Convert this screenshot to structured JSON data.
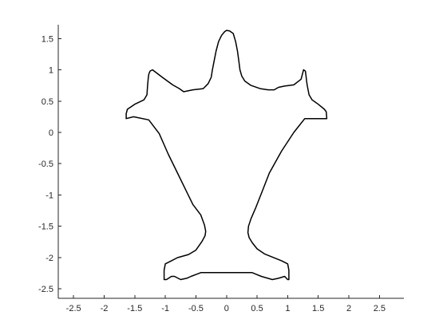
{
  "chart_data": {
    "type": "line",
    "title": "",
    "xlabel": "",
    "ylabel": "",
    "xlim": [
      -2.75,
      2.9
    ],
    "ylim": [
      -2.65,
      1.72
    ],
    "grid": false,
    "line_color": "#000000",
    "axis_color": "#262626",
    "x_ticks": [
      -2.5,
      -2,
      -1.5,
      -1,
      -0.5,
      0,
      0.5,
      1,
      1.5,
      2,
      2.5
    ],
    "x_tick_labels": [
      "-2.5",
      "-2",
      "-1.5",
      "-1",
      "-0.5",
      "0",
      "0.5",
      "1",
      "1.5",
      "2",
      "2.5"
    ],
    "y_ticks": [
      1.5,
      1,
      0.5,
      0,
      -0.5,
      -1,
      -1.5,
      -2,
      -2.5
    ],
    "y_tick_labels": [
      "1.5",
      "1",
      "0.5",
      "0",
      "-0.5",
      "-1",
      "-1.5",
      "-2",
      "-2.5"
    ],
    "series": [
      {
        "x": [
          0,
          0.05,
          0.11,
          0.15,
          0.18,
          0.2,
          0.22,
          0.25,
          0.3,
          0.4,
          0.55,
          0.68,
          0.78,
          0.85,
          0.95,
          1.1,
          1.22,
          1.26,
          1.29,
          1.3,
          1.31,
          1.32,
          1.35,
          1.4,
          1.5,
          1.6,
          1.63,
          1.64,
          1.5,
          1.28,
          1.1,
          0.9,
          0.7,
          0.58,
          0.48,
          0.4,
          0.36,
          0.35,
          0.37,
          0.42,
          0.5,
          0.62,
          0.9,
          1.0,
          1.02,
          1.02,
          1.0,
          0.95,
          0.85,
          0.75,
          0.57,
          0.47,
          0.42,
          0.34,
          0.1,
          0,
          -0.1,
          -0.34,
          -0.42,
          -0.5,
          -0.58,
          -0.65,
          -0.75,
          -0.85,
          -0.9,
          -0.98,
          -1.02,
          -1.02,
          -1.0,
          -0.9,
          -0.8,
          -0.62,
          -0.5,
          -0.45,
          -0.4,
          -0.35,
          -0.34,
          -0.36,
          -0.42,
          -0.55,
          -0.65,
          -0.8,
          -0.95,
          -1.1,
          -1.27,
          -1.52,
          -1.64,
          -1.64,
          -1.62,
          -1.5,
          -1.35,
          -1.3,
          -1.29,
          -1.28,
          -1.27,
          -1.25,
          -1.21,
          -1.05,
          -0.88,
          -0.77,
          -0.7,
          -0.55,
          -0.38,
          -0.3,
          -0.25,
          -0.23,
          -0.2,
          -0.17,
          -0.13,
          -0.08,
          -0.03,
          0
        ],
        "y": [
          1.63,
          1.62,
          1.58,
          1.45,
          1.3,
          1.15,
          1.0,
          0.9,
          0.82,
          0.75,
          0.7,
          0.68,
          0.68,
          0.72,
          0.74,
          0.76,
          0.85,
          1.0,
          0.98,
          0.9,
          0.82,
          0.75,
          0.6,
          0.52,
          0.45,
          0.37,
          0.33,
          0.22,
          0.22,
          0.22,
          0.0,
          -0.3,
          -0.65,
          -0.95,
          -1.2,
          -1.38,
          -1.5,
          -1.6,
          -1.68,
          -1.76,
          -1.86,
          -1.94,
          -2.05,
          -2.1,
          -2.2,
          -2.35,
          -2.35,
          -2.3,
          -2.33,
          -2.35,
          -2.3,
          -2.26,
          -2.24,
          -2.24,
          -2.24,
          -2.24,
          -2.24,
          -2.24,
          -2.24,
          -2.27,
          -2.3,
          -2.33,
          -2.35,
          -2.3,
          -2.3,
          -2.35,
          -2.35,
          -2.2,
          -2.1,
          -2.05,
          -2.0,
          -1.95,
          -1.88,
          -1.81,
          -1.74,
          -1.65,
          -1.58,
          -1.48,
          -1.32,
          -1.15,
          -0.95,
          -0.65,
          -0.35,
          -0.02,
          0.2,
          0.25,
          0.22,
          0.3,
          0.37,
          0.45,
          0.52,
          0.6,
          0.75,
          0.86,
          0.93,
          0.98,
          1.0,
          0.88,
          0.76,
          0.7,
          0.65,
          0.68,
          0.7,
          0.78,
          0.88,
          1.0,
          1.15,
          1.3,
          1.45,
          1.55,
          1.61,
          1.63
        ]
      }
    ]
  }
}
